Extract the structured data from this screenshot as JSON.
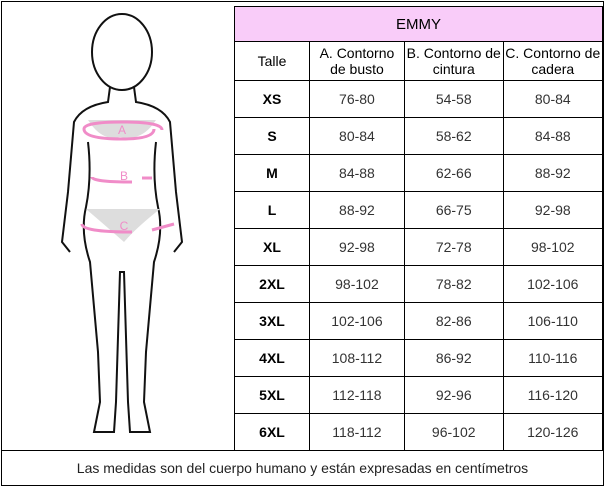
{
  "title": "EMMY",
  "headers": [
    "Talle",
    "A. Contorno de busto",
    "B. Contorno de cintura",
    "C. Contorno de cadera"
  ],
  "rows": [
    [
      "XS",
      "76-80",
      "54-58",
      "80-84"
    ],
    [
      "S",
      "80-84",
      "58-62",
      "84-88"
    ],
    [
      "M",
      "84-88",
      "62-66",
      "88-92"
    ],
    [
      "L",
      "88-92",
      "66-75",
      "92-98"
    ],
    [
      "XL",
      "92-98",
      "72-78",
      "98-102"
    ],
    [
      "2XL",
      "98-102",
      "78-82",
      "102-106"
    ],
    [
      "3XL",
      "102-106",
      "82-86",
      "106-110"
    ],
    [
      "4XL",
      "108-112",
      "86-92",
      "110-116"
    ],
    [
      "5XL",
      "112-118",
      "92-96",
      "116-120"
    ],
    [
      "6XL",
      "118-112",
      "96-102",
      "120-126"
    ]
  ],
  "figure_labels": [
    "A",
    "B",
    "C"
  ],
  "footer": "Las medidas son del cuerpo humano y están expresadas en centímetros",
  "colors": {
    "header_bg": "#f9ccf9",
    "measure_pink": "#f08cc8"
  }
}
